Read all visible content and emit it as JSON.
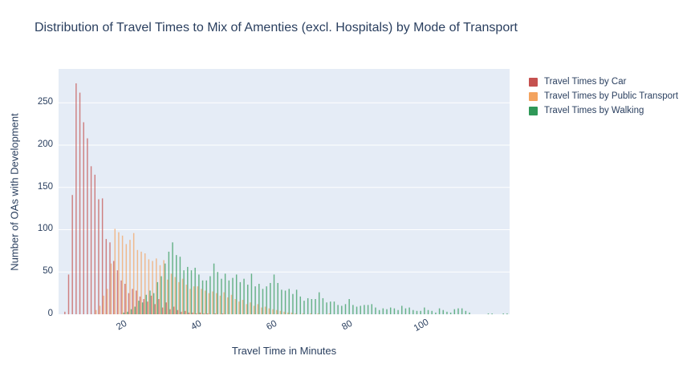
{
  "title": "Distribution of Travel Times to Mix of Amenties (excl. Hospitals) by Mode of Transport",
  "colors": {
    "car": "#c5514f",
    "public_transport": "#f3a35f",
    "walking": "#2f9858",
    "plot_background": "#e5ecf6",
    "grid": "#ffffff",
    "text": "#2a3f5f"
  },
  "chart_data": {
    "type": "bar",
    "subtype": "grouped-histogram",
    "title": "Distribution of Travel Times to Mix of Amenties (excl. Hospitals) by Mode of Transport",
    "xlabel": "Travel Time in Minutes",
    "ylabel": "Number of OAs with Development",
    "xlim": [
      3,
      123
    ],
    "ylim": [
      0,
      290
    ],
    "xticks": [
      20,
      40,
      60,
      80,
      100
    ],
    "yticks": [
      0,
      50,
      100,
      150,
      200,
      250
    ],
    "grid": true,
    "legend_position": "right",
    "series": [
      {
        "name": "Travel Times by Car",
        "color": "#c5514f",
        "points": [
          [
            5,
            3
          ],
          [
            6,
            47
          ],
          [
            7,
            141
          ],
          [
            8,
            273
          ],
          [
            9,
            262
          ],
          [
            10,
            227
          ],
          [
            11,
            208
          ],
          [
            12,
            175
          ],
          [
            13,
            165
          ],
          [
            14,
            136
          ],
          [
            15,
            137
          ],
          [
            16,
            89
          ],
          [
            17,
            85
          ],
          [
            18,
            63
          ],
          [
            19,
            52
          ],
          [
            20,
            40
          ],
          [
            21,
            36
          ],
          [
            22,
            25
          ],
          [
            23,
            30
          ],
          [
            24,
            28
          ],
          [
            25,
            21
          ],
          [
            26,
            18
          ],
          [
            27,
            15
          ],
          [
            28,
            22
          ],
          [
            29,
            12
          ],
          [
            30,
            18
          ],
          [
            31,
            8
          ],
          [
            32,
            14
          ],
          [
            33,
            6
          ],
          [
            34,
            9
          ],
          [
            35,
            5
          ],
          [
            36,
            3
          ],
          [
            37,
            4
          ],
          [
            38,
            2
          ],
          [
            39,
            2
          ],
          [
            40,
            1
          ],
          [
            41,
            2
          ],
          [
            42,
            1
          ],
          [
            43,
            1
          ],
          [
            45,
            1
          ],
          [
            47,
            1
          ]
        ]
      },
      {
        "name": "Travel Times by Public Transport",
        "color": "#f3a35f",
        "points": [
          [
            13,
            5
          ],
          [
            14,
            10
          ],
          [
            15,
            22
          ],
          [
            16,
            30
          ],
          [
            17,
            60
          ],
          [
            18,
            101
          ],
          [
            19,
            97
          ],
          [
            20,
            93
          ],
          [
            21,
            83
          ],
          [
            22,
            88
          ],
          [
            23,
            96
          ],
          [
            24,
            76
          ],
          [
            25,
            74
          ],
          [
            26,
            72
          ],
          [
            27,
            65
          ],
          [
            28,
            63
          ],
          [
            29,
            66
          ],
          [
            30,
            58
          ],
          [
            31,
            64
          ],
          [
            32,
            41
          ],
          [
            33,
            48
          ],
          [
            34,
            44
          ],
          [
            35,
            38
          ],
          [
            36,
            42
          ],
          [
            37,
            35
          ],
          [
            38,
            30
          ],
          [
            39,
            33
          ],
          [
            40,
            33
          ],
          [
            41,
            30
          ],
          [
            42,
            28
          ],
          [
            43,
            25
          ],
          [
            44,
            27
          ],
          [
            45,
            25
          ],
          [
            46,
            22
          ],
          [
            47,
            26
          ],
          [
            48,
            20
          ],
          [
            49,
            23
          ],
          [
            50,
            18
          ],
          [
            51,
            15
          ],
          [
            52,
            17
          ],
          [
            53,
            12
          ],
          [
            54,
            14
          ],
          [
            55,
            10
          ],
          [
            56,
            12
          ],
          [
            57,
            8
          ],
          [
            58,
            9
          ],
          [
            59,
            7
          ],
          [
            60,
            6
          ],
          [
            61,
            5
          ],
          [
            62,
            4
          ],
          [
            63,
            3
          ],
          [
            64,
            2
          ],
          [
            65,
            2
          ],
          [
            66,
            1
          ],
          [
            68,
            1
          ],
          [
            70,
            1
          ],
          [
            72,
            1
          ],
          [
            75,
            1
          ]
        ]
      },
      {
        "name": "Travel Times by Walking",
        "color": "#2f9858",
        "points": [
          [
            20,
            2
          ],
          [
            21,
            3
          ],
          [
            22,
            6
          ],
          [
            23,
            9
          ],
          [
            24,
            16
          ],
          [
            25,
            14
          ],
          [
            26,
            23
          ],
          [
            27,
            28
          ],
          [
            28,
            25
          ],
          [
            29,
            38
          ],
          [
            30,
            45
          ],
          [
            31,
            60
          ],
          [
            32,
            74
          ],
          [
            33,
            85
          ],
          [
            34,
            70
          ],
          [
            35,
            68
          ],
          [
            36,
            52
          ],
          [
            37,
            56
          ],
          [
            38,
            52
          ],
          [
            39,
            55
          ],
          [
            40,
            47
          ],
          [
            41,
            40
          ],
          [
            42,
            40
          ],
          [
            43,
            45
          ],
          [
            44,
            60
          ],
          [
            45,
            50
          ],
          [
            46,
            42
          ],
          [
            47,
            48
          ],
          [
            48,
            40
          ],
          [
            49,
            43
          ],
          [
            50,
            47
          ],
          [
            51,
            38
          ],
          [
            52,
            42
          ],
          [
            53,
            35
          ],
          [
            54,
            48
          ],
          [
            55,
            33
          ],
          [
            56,
            36
          ],
          [
            57,
            30
          ],
          [
            58,
            33
          ],
          [
            59,
            37
          ],
          [
            60,
            47
          ],
          [
            61,
            37
          ],
          [
            62,
            29
          ],
          [
            63,
            28
          ],
          [
            64,
            30
          ],
          [
            65,
            24
          ],
          [
            66,
            29
          ],
          [
            67,
            21
          ],
          [
            68,
            16
          ],
          [
            69,
            19
          ],
          [
            70,
            18
          ],
          [
            71,
            18
          ],
          [
            72,
            26
          ],
          [
            73,
            19
          ],
          [
            74,
            14
          ],
          [
            75,
            15
          ],
          [
            76,
            15
          ],
          [
            77,
            11
          ],
          [
            78,
            10
          ],
          [
            79,
            12
          ],
          [
            80,
            18
          ],
          [
            81,
            11
          ],
          [
            82,
            9
          ],
          [
            83,
            10
          ],
          [
            84,
            11
          ],
          [
            85,
            11
          ],
          [
            86,
            12
          ],
          [
            87,
            8
          ],
          [
            88,
            5
          ],
          [
            89,
            7
          ],
          [
            90,
            6
          ],
          [
            91,
            8
          ],
          [
            92,
            7
          ],
          [
            93,
            5
          ],
          [
            94,
            10
          ],
          [
            95,
            7
          ],
          [
            96,
            8
          ],
          [
            97,
            5
          ],
          [
            98,
            4
          ],
          [
            99,
            4
          ],
          [
            100,
            8
          ],
          [
            101,
            5
          ],
          [
            102,
            4
          ],
          [
            103,
            2
          ],
          [
            104,
            7
          ],
          [
            105,
            5
          ],
          [
            106,
            3
          ],
          [
            107,
            2
          ],
          [
            108,
            6
          ],
          [
            109,
            7
          ],
          [
            110,
            7
          ],
          [
            111,
            4
          ],
          [
            112,
            2
          ],
          [
            117,
            1
          ],
          [
            118,
            1
          ],
          [
            121,
            1
          ],
          [
            122,
            1
          ]
        ]
      }
    ]
  },
  "legend": {
    "items": [
      {
        "label": "Travel Times by Car",
        "color": "#c5514f"
      },
      {
        "label": "Travel Times by Public Transport",
        "color": "#f3a35f"
      },
      {
        "label": "Travel Times by Walking",
        "color": "#2f9858"
      }
    ]
  }
}
